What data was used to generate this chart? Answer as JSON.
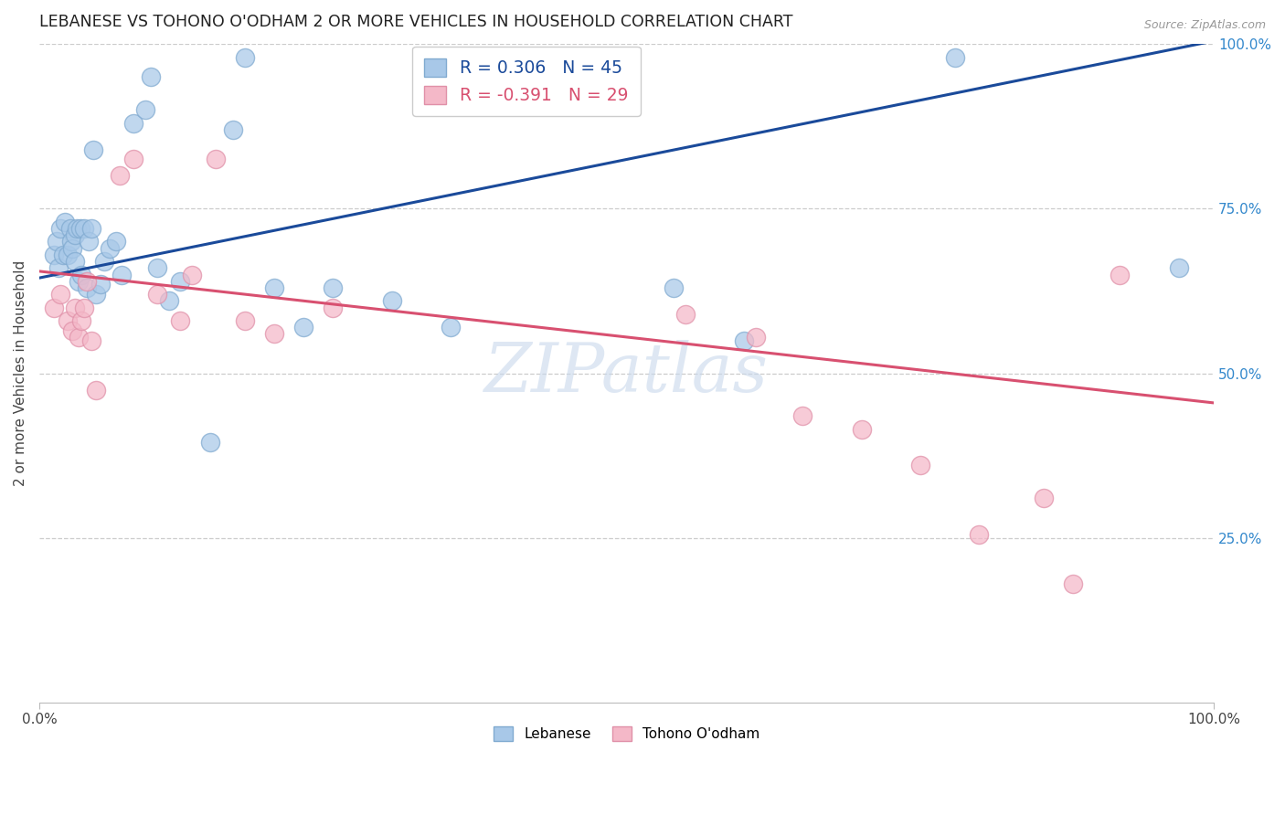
{
  "title": "LEBANESE VS TOHONO O'ODHAM 2 OR MORE VEHICLES IN HOUSEHOLD CORRELATION CHART",
  "source": "Source: ZipAtlas.com",
  "ylabel": "2 or more Vehicles in Household",
  "blue_R": 0.306,
  "blue_N": 45,
  "pink_R": -0.391,
  "pink_N": 29,
  "blue_color": "#a8c8e8",
  "pink_color": "#f4b8c8",
  "blue_edge": "#80aad0",
  "pink_edge": "#e090a8",
  "blue_line_color": "#1a4a9a",
  "pink_line_color": "#d85070",
  "watermark_color": "#c8d8ec",
  "blue_x": [
    0.012,
    0.015,
    0.016,
    0.018,
    0.02,
    0.022,
    0.024,
    0.026,
    0.027,
    0.028,
    0.03,
    0.03,
    0.032,
    0.033,
    0.035,
    0.036,
    0.038,
    0.04,
    0.042,
    0.044,
    0.046,
    0.048,
    0.052,
    0.055,
    0.06,
    0.065,
    0.07,
    0.08,
    0.09,
    0.1,
    0.11,
    0.12,
    0.145,
    0.175,
    0.2,
    0.225,
    0.25,
    0.3,
    0.35,
    0.54,
    0.6,
    0.78,
    0.97,
    0.165,
    0.095
  ],
  "blue_y": [
    0.68,
    0.7,
    0.66,
    0.72,
    0.68,
    0.73,
    0.68,
    0.72,
    0.7,
    0.69,
    0.71,
    0.67,
    0.72,
    0.64,
    0.72,
    0.65,
    0.72,
    0.63,
    0.7,
    0.72,
    0.84,
    0.62,
    0.635,
    0.67,
    0.69,
    0.7,
    0.65,
    0.88,
    0.9,
    0.66,
    0.61,
    0.64,
    0.395,
    0.98,
    0.63,
    0.57,
    0.63,
    0.61,
    0.57,
    0.63,
    0.55,
    0.98,
    0.66,
    0.87,
    0.95
  ],
  "pink_x": [
    0.012,
    0.018,
    0.024,
    0.028,
    0.03,
    0.033,
    0.036,
    0.038,
    0.04,
    0.044,
    0.048,
    0.068,
    0.08,
    0.1,
    0.12,
    0.13,
    0.15,
    0.175,
    0.2,
    0.25,
    0.55,
    0.61,
    0.65,
    0.7,
    0.75,
    0.8,
    0.855,
    0.88,
    0.92
  ],
  "pink_y": [
    0.6,
    0.62,
    0.58,
    0.565,
    0.6,
    0.555,
    0.58,
    0.6,
    0.64,
    0.55,
    0.475,
    0.8,
    0.825,
    0.62,
    0.58,
    0.65,
    0.825,
    0.58,
    0.56,
    0.6,
    0.59,
    0.555,
    0.435,
    0.415,
    0.36,
    0.255,
    0.31,
    0.18,
    0.65
  ]
}
